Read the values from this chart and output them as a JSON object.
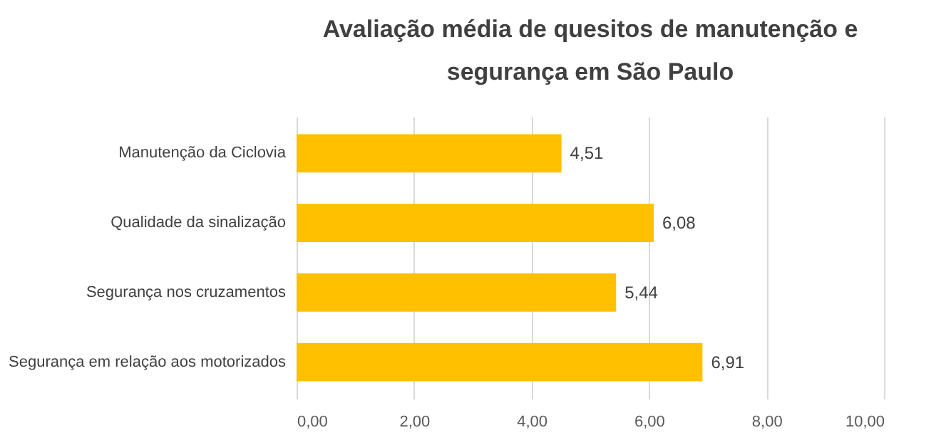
{
  "chart_data": {
    "type": "bar",
    "orientation": "horizontal",
    "title": "Avaliação média de quesitos de manutenção e segurança em São Paulo",
    "categories": [
      "Manutenção da Ciclovia",
      "Qualidade da sinalização",
      "Segurança nos cruzamentos",
      "Segurança em relação aos motorizados"
    ],
    "values": [
      4.51,
      6.08,
      5.44,
      6.91
    ],
    "value_labels": [
      "4,51",
      "6,08",
      "5,44",
      "6,91"
    ],
    "color": "#ffc000",
    "xlim": [
      0,
      10
    ],
    "xticks": [
      {
        "value": 0,
        "label": "0,00"
      },
      {
        "value": 2,
        "label": "2,00"
      },
      {
        "value": 4,
        "label": "4,00"
      },
      {
        "value": 6,
        "label": "6,00"
      },
      {
        "value": 8,
        "label": "8,00"
      },
      {
        "value": 10,
        "label": "10,00"
      }
    ],
    "grid": "x"
  }
}
